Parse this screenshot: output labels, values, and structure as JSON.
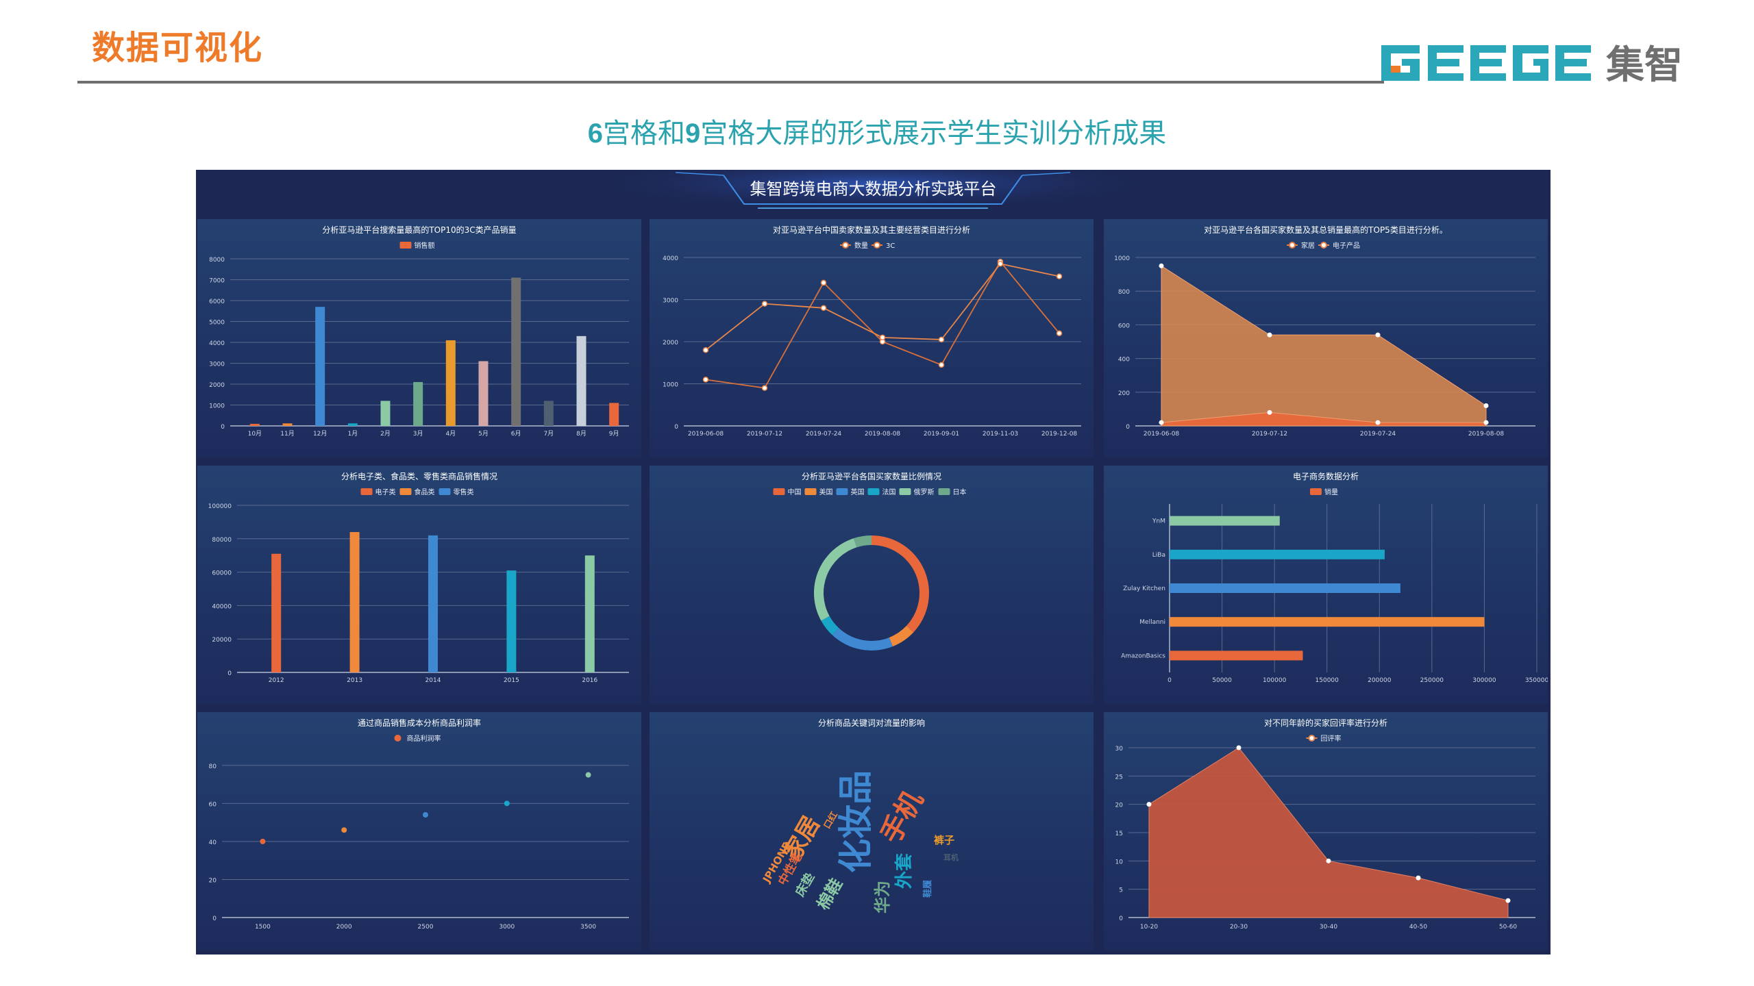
{
  "slide": {
    "title": "数据可视化",
    "subtitle_prefix": "6",
    "subtitle_mid1": "宫格和",
    "subtitle_mid2": "9",
    "subtitle_rest": "宫格大屏的形式展示学生实训分析成果"
  },
  "logo": {
    "latin": "GEEGE",
    "cn": "集智",
    "colors": {
      "teal": "#2aa7b8",
      "orange": "#ee7b2a",
      "dark": "#6f6f6f"
    }
  },
  "dashboard": {
    "title": "集智跨境电商大数据分析实践平台"
  },
  "colors": {
    "bg": "#1c2753",
    "grid": "#5a6a8f",
    "axis": "#cfd6e6",
    "orange": "#e8683b"
  },
  "chart_data": [
    {
      "type": "bar",
      "title": "分析亚马逊平台搜索量最高的TOP10的3C类产品销量",
      "legend": [
        "销售额"
      ],
      "categories": [
        "10月",
        "11月",
        "12月",
        "1月",
        "2月",
        "3月",
        "4月",
        "5月",
        "6月",
        "7月",
        "8月",
        "9月"
      ],
      "values": [
        100,
        120,
        5700,
        120,
        1200,
        2100,
        4100,
        3100,
        7100,
        1200,
        4300,
        1100
      ],
      "bar_colors": [
        "#e8683b",
        "#f08a3a",
        "#3f88d2",
        "#19a6c9",
        "#8cc9a5",
        "#6fa98b",
        "#e99a2c",
        "#d4a6a6",
        "#707070",
        "#4e6072",
        "#c7cfda",
        "#e8683b"
      ],
      "ylim": [
        0,
        8000
      ],
      "yticks": [
        "0",
        "1000",
        "2000",
        "3000",
        "4000",
        "5000",
        "6000",
        "7000",
        "8000"
      ]
    },
    {
      "type": "line",
      "title": "对亚马逊平台中国卖家数量及其主要经营类目进行分析",
      "x": [
        "2019-06-08",
        "2019-07-12",
        "2019-07-24",
        "2019-08-08",
        "2019-09-01",
        "2019-11-03",
        "2019-12-08"
      ],
      "series": [
        {
          "name": "数量",
          "values": [
            1100,
            900,
            3400,
            2000,
            1450,
            3900,
            2200
          ]
        },
        {
          "name": "3C",
          "values": [
            1800,
            2900,
            2800,
            2100,
            2050,
            3850,
            3550
          ]
        }
      ],
      "ylim": [
        0,
        4000
      ],
      "yticks": [
        "0",
        "1000",
        "2000",
        "3000",
        "4000"
      ]
    },
    {
      "type": "area",
      "title": "对亚马逊平台各国买家数量及其总销量最高的TOP5类目进行分析。",
      "x": [
        "2019-06-08",
        "2019-07-12",
        "2019-07-24",
        "2019-08-08"
      ],
      "series": [
        {
          "name": "家居",
          "values": [
            950,
            540,
            540,
            120
          ]
        },
        {
          "name": "电子产品",
          "values": [
            20,
            80,
            20,
            20
          ]
        }
      ],
      "ylim": [
        0,
        1000
      ],
      "yticks": [
        "0",
        "200",
        "400",
        "600",
        "800",
        "1000"
      ]
    },
    {
      "type": "bar",
      "title": "分析电子类、食品类、零售类商品销售情况",
      "legend": [
        "电子类",
        "食品类",
        "零售类"
      ],
      "categories": [
        "2012",
        "2013",
        "2014",
        "2015",
        "2016"
      ],
      "values": [
        71000,
        84000,
        82000,
        61000,
        70000
      ],
      "bar_colors": [
        "#e8683b",
        "#f08a3a",
        "#3f88d2",
        "#19a6c9",
        "#8cc9a5"
      ],
      "ylim": [
        0,
        100000
      ],
      "yticks": [
        "0",
        "20000",
        "40000",
        "60000",
        "80000",
        "100000"
      ]
    },
    {
      "type": "pie",
      "title": "分析亚马逊平台各国买家数量比例情况",
      "legend": [
        "中国",
        "美国",
        "英国",
        "法国",
        "俄罗斯",
        "日本"
      ],
      "values": [
        37,
        7,
        18,
        5,
        28,
        5
      ],
      "colors": [
        "#e8683b",
        "#f08a3a",
        "#3f88d2",
        "#19a6c9",
        "#8cc9a5",
        "#6fa98b"
      ]
    },
    {
      "type": "bar",
      "orientation": "horizontal",
      "title": "电子商务数据分析",
      "legend": [
        "销量"
      ],
      "categories": [
        "YnM",
        "LiBa",
        "Zulay Kitchen",
        "Mellanni",
        "AmazonBasics"
      ],
      "values": [
        105000,
        205000,
        220000,
        300000,
        127000
      ],
      "bar_colors": [
        "#8cc9a5",
        "#19a6c9",
        "#3f88d2",
        "#f08a3a",
        "#e8683b"
      ],
      "xlim": [
        0,
        350000
      ],
      "xticks": [
        "0",
        "50000",
        "100000",
        "150000",
        "200000",
        "250000",
        "300000",
        "350000"
      ]
    },
    {
      "type": "scatter",
      "title": "通过商品销售成本分析商品利润率",
      "legend": [
        "商品利润率"
      ],
      "points": [
        {
          "x": 1500,
          "y": 40,
          "color": "#e8683b"
        },
        {
          "x": 2000,
          "y": 46,
          "color": "#f08a3a"
        },
        {
          "x": 2500,
          "y": 54,
          "color": "#3f88d2"
        },
        {
          "x": 3000,
          "y": 60,
          "color": "#19a6c9"
        },
        {
          "x": 3500,
          "y": 75,
          "color": "#8cc9a5"
        }
      ],
      "xlim": [
        1250,
        3750
      ],
      "ylim": [
        0,
        90
      ],
      "xticks": [
        "1500",
        "2000",
        "2500",
        "3000",
        "3500"
      ],
      "yticks": [
        "0",
        "20",
        "40",
        "60",
        "80"
      ]
    },
    {
      "type": "wordcloud",
      "title": "分析商品关键词对流量的影响",
      "words": [
        {
          "text": "化妆品",
          "color": "#3f88d2"
        },
        {
          "text": "手机",
          "color": "#e8683b"
        },
        {
          "text": "家居",
          "color": "#f08a3a"
        },
        {
          "text": "外套",
          "color": "#19a6c9"
        },
        {
          "text": "华为",
          "color": "#6fa98b"
        },
        {
          "text": "棉鞋",
          "color": "#8cc9a5"
        },
        {
          "text": "床垫",
          "color": "#8cc9a5"
        },
        {
          "text": "中性笔",
          "color": "#e8683b"
        },
        {
          "text": "JPHONE",
          "color": "#f08a3a"
        },
        {
          "text": "裤子",
          "color": "#e99a2c"
        },
        {
          "text": "口红",
          "color": "#f08a3a"
        },
        {
          "text": "鞋履",
          "color": "#3f88d2"
        },
        {
          "text": "耳机",
          "color": "#4e6072"
        }
      ]
    },
    {
      "type": "area",
      "title": "对不同年龄的买家回评率进行分析",
      "legend": [
        "回评率"
      ],
      "x": [
        "10-20",
        "20-30",
        "30-40",
        "40-50",
        "50-60"
      ],
      "series": [
        {
          "name": "回评率",
          "values": [
            20,
            30,
            10,
            7,
            3
          ]
        }
      ],
      "ylim": [
        0,
        30
      ],
      "yticks": [
        "0",
        "5",
        "10",
        "15",
        "20",
        "25",
        "30"
      ]
    }
  ]
}
